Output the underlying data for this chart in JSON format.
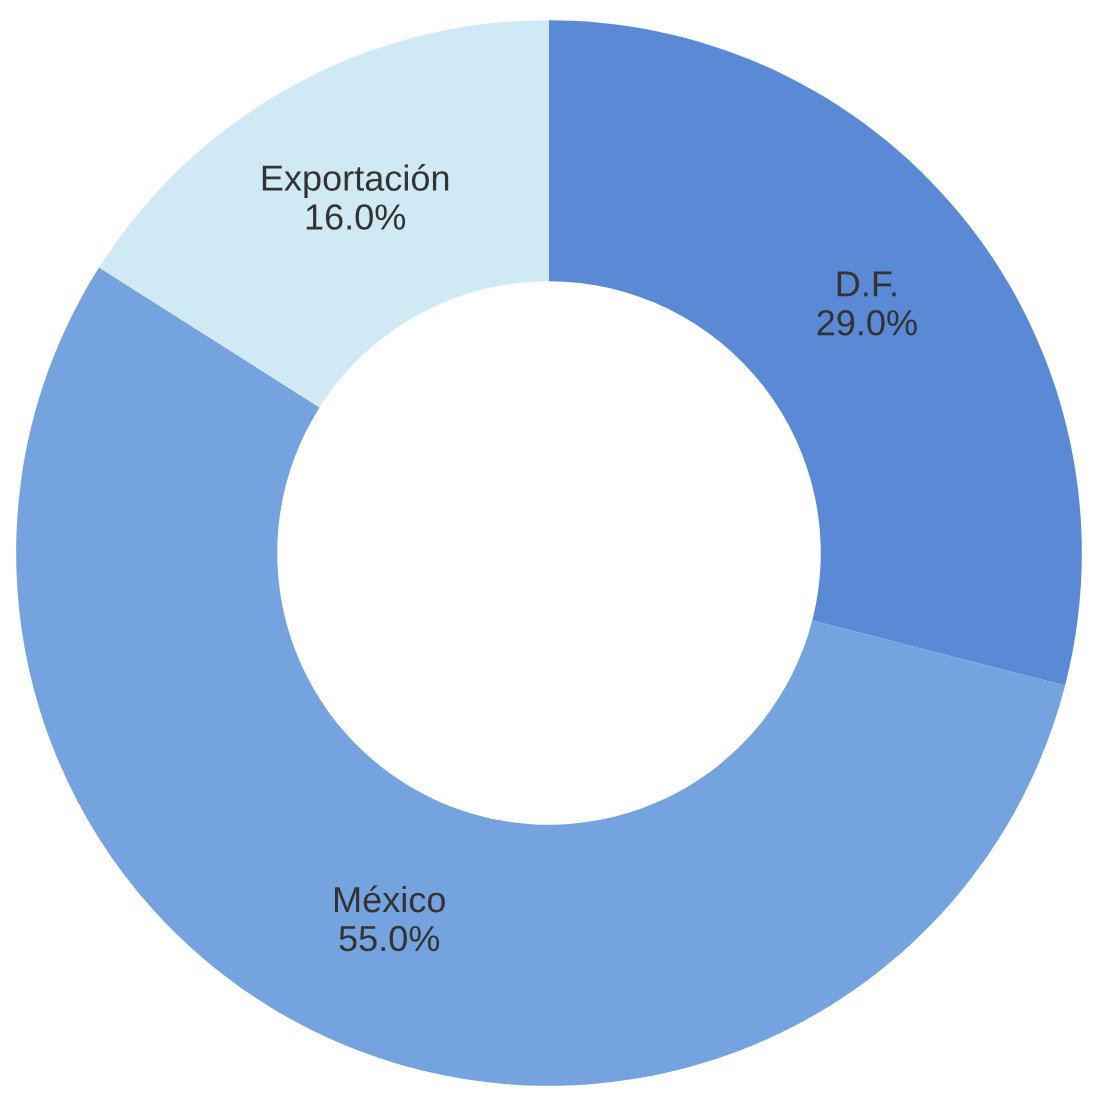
{
  "chart_data": {
    "type": "donut",
    "categories": [
      "D.F.",
      "México",
      "Exportación"
    ],
    "values": [
      29,
      55,
      16
    ],
    "colors": [
      "#5a8ad6",
      "#74a3df",
      "#cfeaf5"
    ],
    "value_labels": [
      "29.0%",
      "55.0%",
      "16.0%"
    ],
    "legend": false
  }
}
